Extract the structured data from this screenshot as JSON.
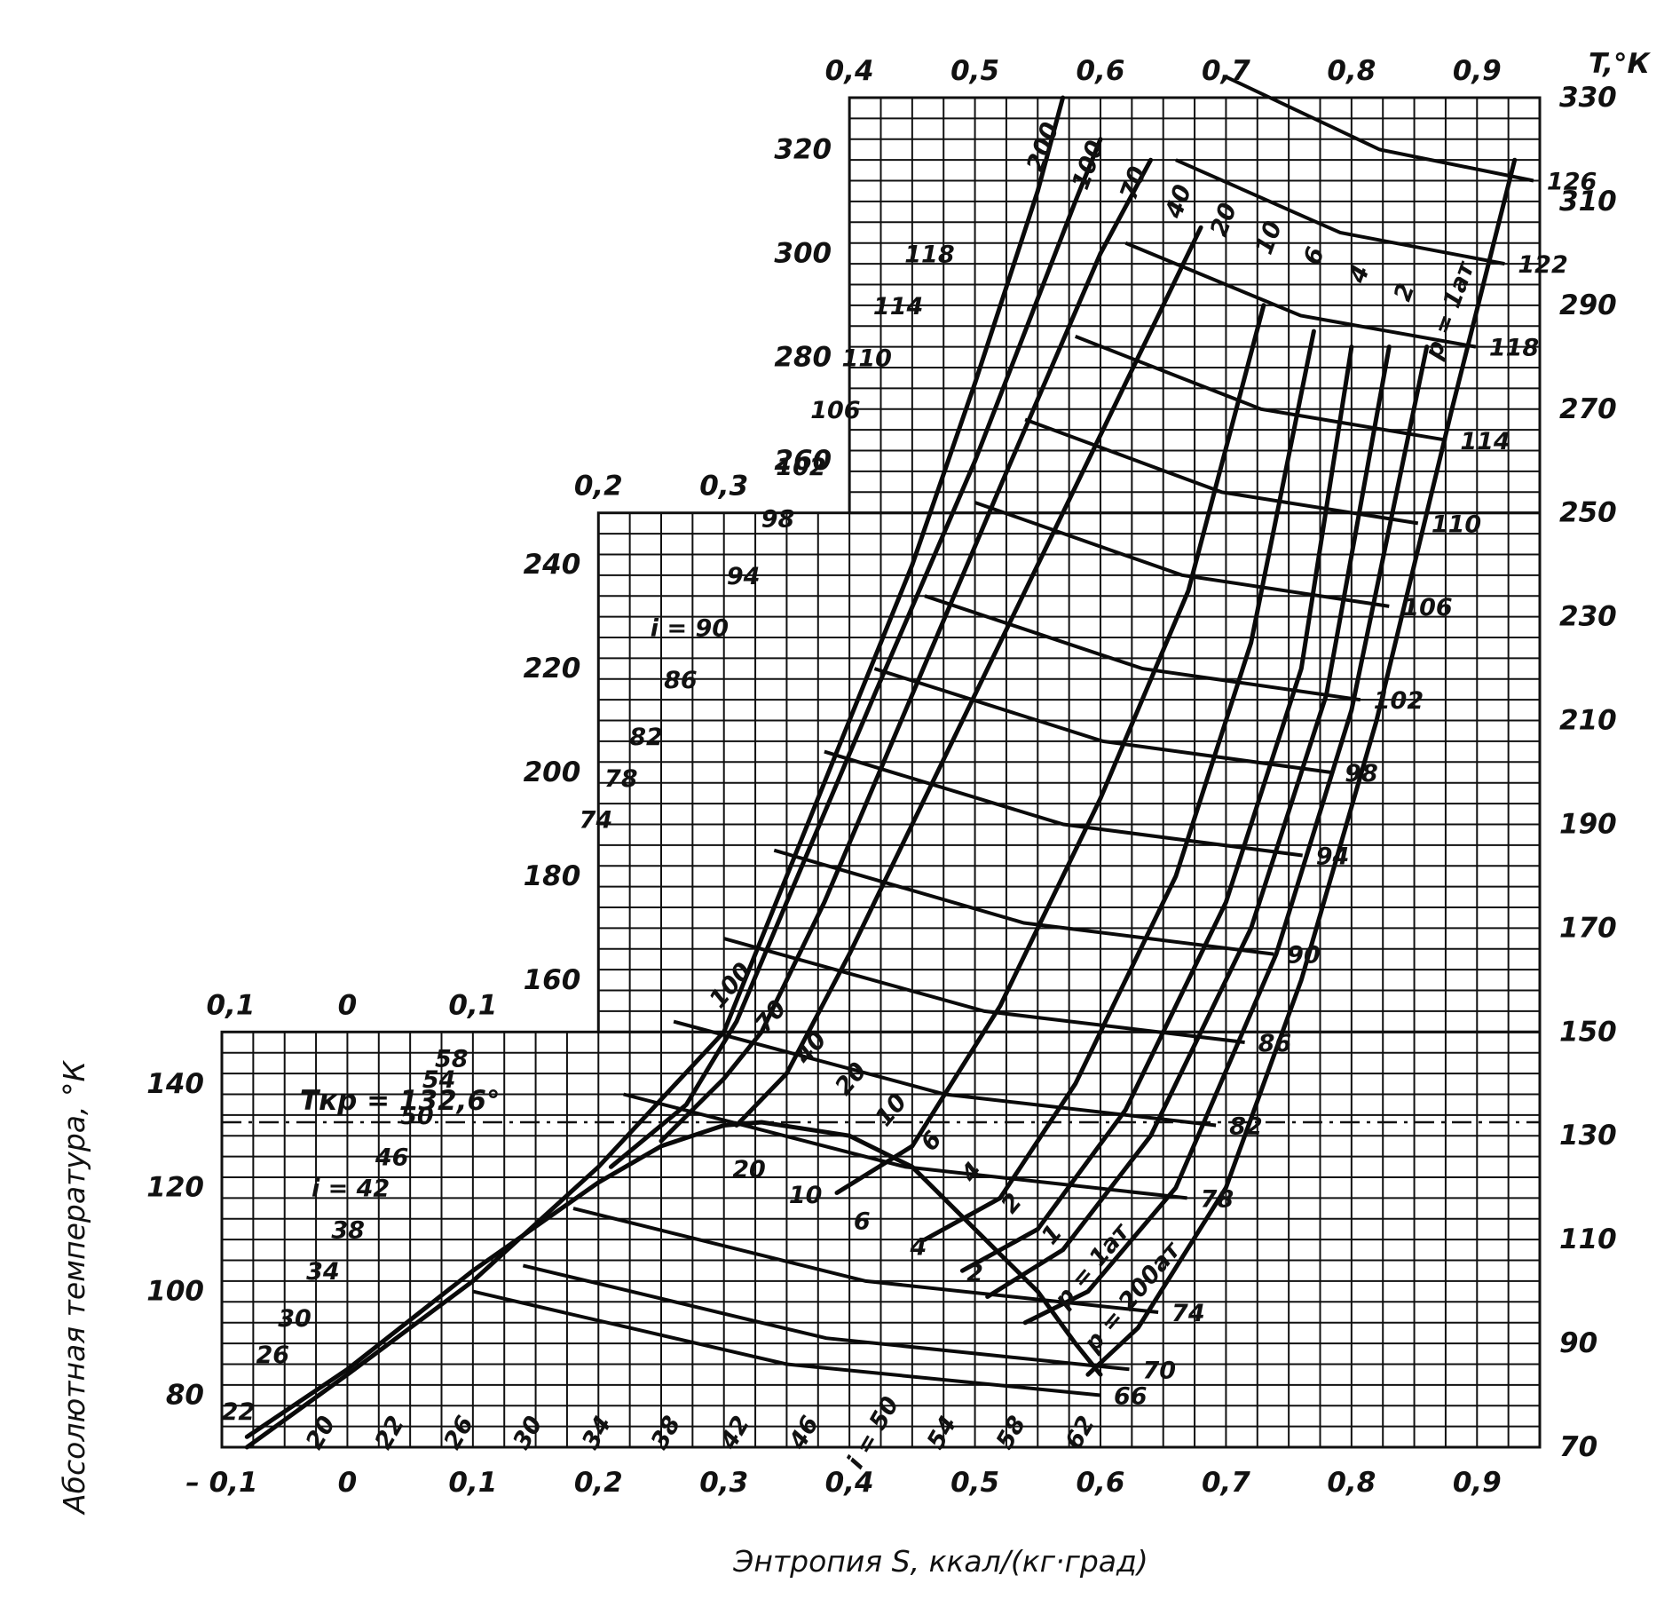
{
  "chart_data": {
    "type": "line",
    "xlabel": "Энтропия S, ккал/(кг·град)",
    "ylabel": "Абсолютная температура, °К",
    "y_unit_label": "T,°К",
    "critical_label": "Tкр = 132,6°",
    "critical_temperature": 132.6,
    "panels": [
      {
        "name": "lower",
        "xlim": [
          -0.1,
          0.95
        ],
        "ylim": [
          70,
          150
        ],
        "x_ticks": [
          "– 0,1",
          "0",
          "0,1",
          "0,2",
          "0,3",
          "0,4",
          "0,5",
          "0,6",
          "0,7",
          "0,8",
          "0,9"
        ],
        "x_ticks_top": [
          "0,1",
          "0",
          "0,1"
        ],
        "y_ticks_left": [
          "80",
          "100",
          "120",
          "140"
        ],
        "y_ticks_right": [
          "70",
          "90",
          "110",
          "130",
          "150"
        ]
      },
      {
        "name": "middle",
        "xlim": [
          0.2,
          0.95
        ],
        "ylim": [
          150,
          250
        ],
        "x_ticks_top": [
          "0,2",
          "0,3"
        ],
        "y_ticks_left": [
          "160",
          "180",
          "200",
          "220",
          "240"
        ],
        "y_ticks_right": [
          "170",
          "190",
          "210",
          "230",
          "250"
        ]
      },
      {
        "name": "upper",
        "xlim": [
          0.4,
          0.95
        ],
        "ylim": [
          250,
          330
        ],
        "x_ticks_top": [
          "0,4",
          "0,5",
          "0,6",
          "0,7",
          "0,8",
          "0,9"
        ],
        "y_ticks_left": [
          "260",
          "280",
          "300",
          "320"
        ],
        "y_ticks_right": [
          "270",
          "290",
          "310",
          "330"
        ]
      }
    ],
    "saturation_dome": [
      [
        -0.08,
        72
      ],
      [
        0.0,
        85
      ],
      [
        0.1,
        104
      ],
      [
        0.2,
        121
      ],
      [
        0.25,
        128
      ],
      [
        0.3,
        132
      ],
      [
        0.33,
        132.6
      ],
      [
        0.4,
        130
      ],
      [
        0.45,
        124
      ],
      [
        0.5,
        112
      ],
      [
        0.55,
        100
      ],
      [
        0.58,
        90
      ],
      [
        0.6,
        84
      ]
    ],
    "isobars": [
      {
        "label": "p=200ат",
        "points": [
          [
            -0.08,
            70
          ],
          [
            0.0,
            84
          ],
          [
            0.1,
            102
          ],
          [
            0.2,
            124
          ],
          [
            0.3,
            150
          ],
          [
            0.35,
            180
          ],
          [
            0.4,
            210
          ],
          [
            0.45,
            240
          ],
          [
            0.5,
            275
          ],
          [
            0.55,
            312
          ],
          [
            0.57,
            330
          ]
        ]
      },
      {
        "label": "100",
        "points": [
          [
            0.21,
            124
          ],
          [
            0.27,
            136
          ],
          [
            0.31,
            152
          ],
          [
            0.35,
            175
          ],
          [
            0.42,
            215
          ],
          [
            0.5,
            260
          ],
          [
            0.58,
            310
          ],
          [
            0.6,
            322
          ]
        ]
      },
      {
        "label": "70",
        "points": [
          [
            0.25,
            129
          ],
          [
            0.3,
            141
          ],
          [
            0.33,
            150
          ],
          [
            0.38,
            175
          ],
          [
            0.45,
            215
          ],
          [
            0.52,
            255
          ],
          [
            0.6,
            300
          ],
          [
            0.64,
            318
          ]
        ]
      },
      {
        "label": "40",
        "points": [
          [
            0.31,
            132
          ],
          [
            0.35,
            142
          ],
          [
            0.4,
            165
          ],
          [
            0.48,
            205
          ],
          [
            0.55,
            240
          ],
          [
            0.62,
            275
          ],
          [
            0.68,
            305
          ]
        ]
      },
      {
        "label": "20",
        "points": [
          [
            0.39,
            119
          ],
          [
            0.45,
            128
          ],
          [
            0.52,
            155
          ],
          [
            0.6,
            195
          ],
          [
            0.67,
            235
          ],
          [
            0.73,
            290
          ]
        ]
      },
      {
        "label": "10",
        "points": [
          [
            0.46,
            110
          ],
          [
            0.52,
            118
          ],
          [
            0.58,
            140
          ],
          [
            0.66,
            180
          ],
          [
            0.72,
            225
          ],
          [
            0.77,
            285
          ]
        ]
      },
      {
        "label": "6",
        "points": [
          [
            0.49,
            104
          ],
          [
            0.55,
            112
          ],
          [
            0.62,
            135
          ],
          [
            0.7,
            175
          ],
          [
            0.76,
            220
          ],
          [
            0.8,
            282
          ]
        ]
      },
      {
        "label": "4",
        "points": [
          [
            0.51,
            99
          ],
          [
            0.57,
            108
          ],
          [
            0.64,
            130
          ],
          [
            0.72,
            170
          ],
          [
            0.78,
            215
          ],
          [
            0.83,
            282
          ]
        ]
      },
      {
        "label": "2",
        "points": [
          [
            0.54,
            94
          ],
          [
            0.59,
            100
          ],
          [
            0.66,
            120
          ],
          [
            0.74,
            165
          ],
          [
            0.8,
            212
          ],
          [
            0.86,
            282
          ]
        ]
      },
      {
        "label": "p=1ат",
        "points": [
          [
            0.59,
            84
          ],
          [
            0.63,
            93
          ],
          [
            0.7,
            120
          ],
          [
            0.76,
            160
          ],
          [
            0.82,
            210
          ],
          [
            0.88,
            270
          ],
          [
            0.93,
            318
          ]
        ]
      }
    ],
    "isenthalps": [
      {
        "label": "i=42",
        "value": 42
      },
      {
        "label": "i=50",
        "value": 50
      },
      {
        "label": "i=90",
        "value": 90
      }
    ],
    "enthalpy_left_labels": [
      "22",
      "26",
      "30",
      "34",
      "38",
      "i = 42",
      "46",
      "50",
      "54",
      "58",
      "74",
      "78",
      "82",
      "86",
      "i = 90",
      "94",
      "98",
      "102",
      "106",
      "110",
      "114",
      "118"
    ],
    "enthalpy_right_labels": [
      "66",
      "70",
      "74",
      "78",
      "82",
      "86",
      "90",
      "94",
      "98",
      "102",
      "106",
      "110",
      "114",
      "118",
      "122",
      "126"
    ],
    "enthalpy_bottom_labels": [
      "20",
      "22",
      "26",
      "30",
      "34",
      "38",
      "42",
      "46",
      "i = 50",
      "54",
      "58",
      "62"
    ],
    "pressure_labels_upper": [
      "200",
      "100",
      "70",
      "40",
      "20",
      "10",
      "6",
      "4",
      "2",
      "p = 1ат"
    ],
    "pressure_labels_lower": [
      "100",
      "70",
      "40",
      "20",
      "10",
      "6",
      "4",
      "2",
      "1",
      "p = 1ат",
      "p = 200ат"
    ],
    "pressure_labels_dome": [
      "20",
      "10",
      "6",
      "4",
      "2"
    ]
  }
}
